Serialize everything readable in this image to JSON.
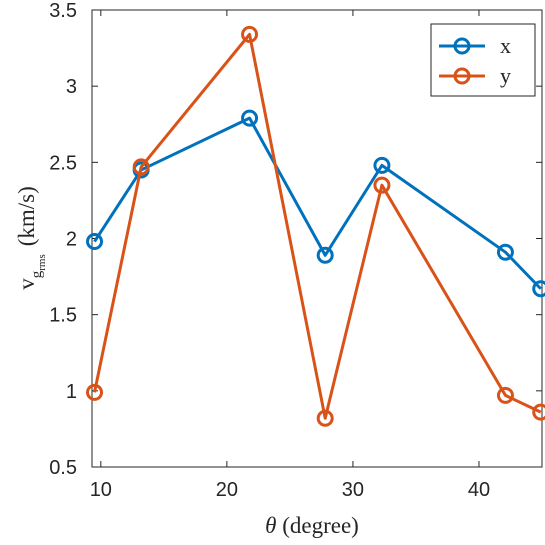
{
  "chart_data": {
    "type": "line",
    "xlabel": {
      "symbol": "θ",
      "text": " (degree)"
    },
    "ylabel": {
      "base": "v",
      "sub": "g",
      "subsub": "rms",
      "text": "(km/s)"
    },
    "xlim": [
      9.3,
      45
    ],
    "ylim": [
      0.5,
      3.5
    ],
    "xticks": [
      10,
      20,
      30,
      40
    ],
    "xtick_labels": [
      "10",
      "20",
      "30",
      "40"
    ],
    "yticks": [
      0.5,
      1,
      1.5,
      2,
      2.5,
      3,
      3.5
    ],
    "ytick_labels": [
      "0.5",
      "1",
      "1.5",
      "2",
      "2.5",
      "3",
      "3.5"
    ],
    "grid": false,
    "legend_position": "top-right",
    "x": [
      9.5,
      13.2,
      21.8,
      27.8,
      32.3,
      42.1,
      44.9
    ],
    "series": [
      {
        "name": "x",
        "color": "#0072BD",
        "values": [
          1.98,
          2.45,
          2.79,
          1.89,
          2.48,
          1.91,
          1.67
        ]
      },
      {
        "name": "y",
        "color": "#D95319",
        "values": [
          0.99,
          2.47,
          3.34,
          0.82,
          2.35,
          0.97,
          0.86
        ]
      }
    ]
  }
}
